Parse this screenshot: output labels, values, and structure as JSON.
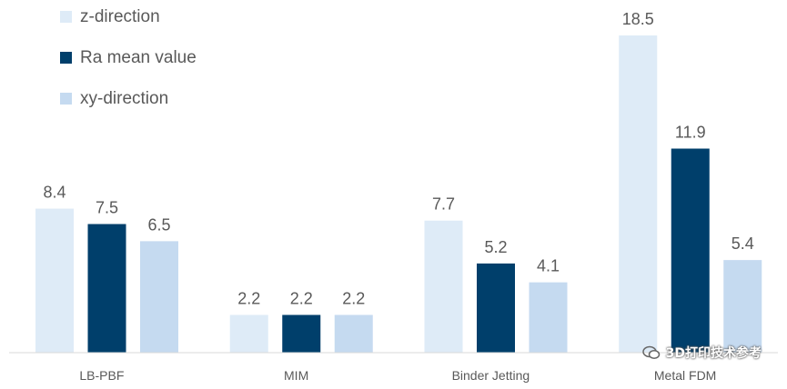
{
  "chart_data": {
    "type": "bar",
    "categories": [
      "LB-PBF",
      "MIM",
      "Binder Jetting",
      "Metal FDM"
    ],
    "series": [
      {
        "name": "z-direction",
        "color": "#deebf7",
        "values": [
          8.4,
          2.2,
          7.7,
          18.5
        ]
      },
      {
        "name": "Ra mean value",
        "color": "#003f6b",
        "values": [
          7.5,
          2.2,
          5.2,
          11.9
        ]
      },
      {
        "name": "xy-direction",
        "color": "#c5daf0",
        "values": [
          6.5,
          2.2,
          4.1,
          5.4
        ]
      }
    ],
    "value_labels": [
      [
        "8.4",
        "7.5",
        "6.5"
      ],
      [
        "2.2",
        "2.2",
        "2.2"
      ],
      [
        "7.7",
        "5.2",
        "4.1"
      ],
      [
        "18.5",
        "11.9",
        "5.4"
      ]
    ],
    "legend_position": "top-left",
    "grid": false,
    "ylim": [
      0,
      18.5
    ]
  },
  "watermark": {
    "icon": "wechat-icon",
    "text": "3D打印技术参考"
  }
}
